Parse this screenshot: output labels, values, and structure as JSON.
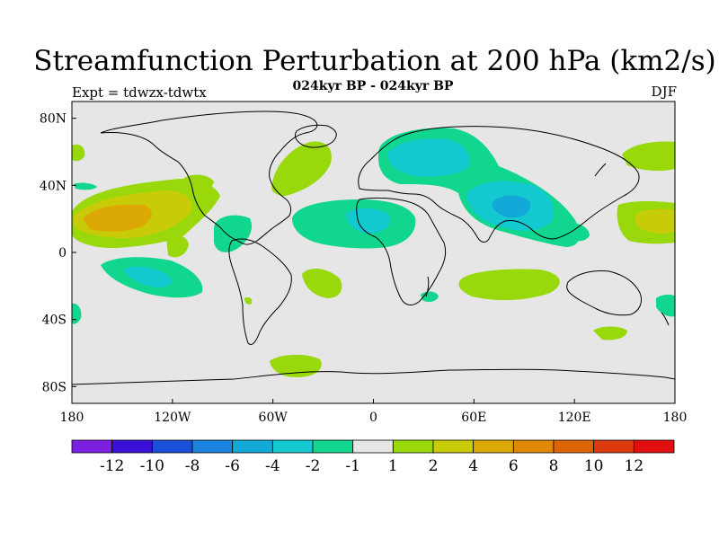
{
  "title": "Streamfunction Perturbation at 200 hPa (km2/s)",
  "subtitle": "024kyr BP - 024kyr BP",
  "experiment": "Expt = tdwzx-tdwtx",
  "season": "DJF",
  "map": {
    "projection": "cylindrical-equidistant",
    "lon_range": [
      -180,
      180
    ],
    "lat_range": [
      -90,
      90
    ],
    "background_color": "#e6e6e6",
    "coastline_color": "#000000",
    "x_ticks": [
      "180",
      "120W",
      "60W",
      "0",
      "60E",
      "120E",
      "180"
    ],
    "y_ticks": [
      "80N",
      "40N",
      "0",
      "40S",
      "80S"
    ]
  },
  "colorbar": {
    "colors": [
      "#7b1fe0",
      "#3a10d8",
      "#1a4fd8",
      "#1a84e0",
      "#12a8d8",
      "#14c8d0",
      "#10d68e",
      "#e6e6e6",
      "#99d80a",
      "#c8cc08",
      "#dca806",
      "#de8804",
      "#de6402",
      "#de3a10",
      "#e20e10"
    ],
    "labels": [
      "-12",
      "-10",
      "-8",
      "-6",
      "-4",
      "-2",
      "-1",
      "1",
      "2",
      "4",
      "6",
      "8",
      "10",
      "12"
    ]
  }
}
